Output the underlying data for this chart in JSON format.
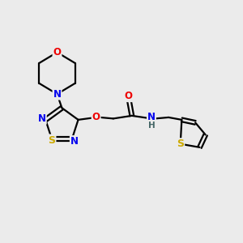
{
  "bg_color": "#ebebeb",
  "atom_colors": {
    "C": "#000000",
    "N": "#0000ee",
    "O": "#ee0000",
    "S": "#ccaa00",
    "H": "#446666"
  },
  "bond_color": "#000000",
  "line_width": 1.6,
  "figsize": [
    3.0,
    3.0
  ],
  "dpi": 100
}
